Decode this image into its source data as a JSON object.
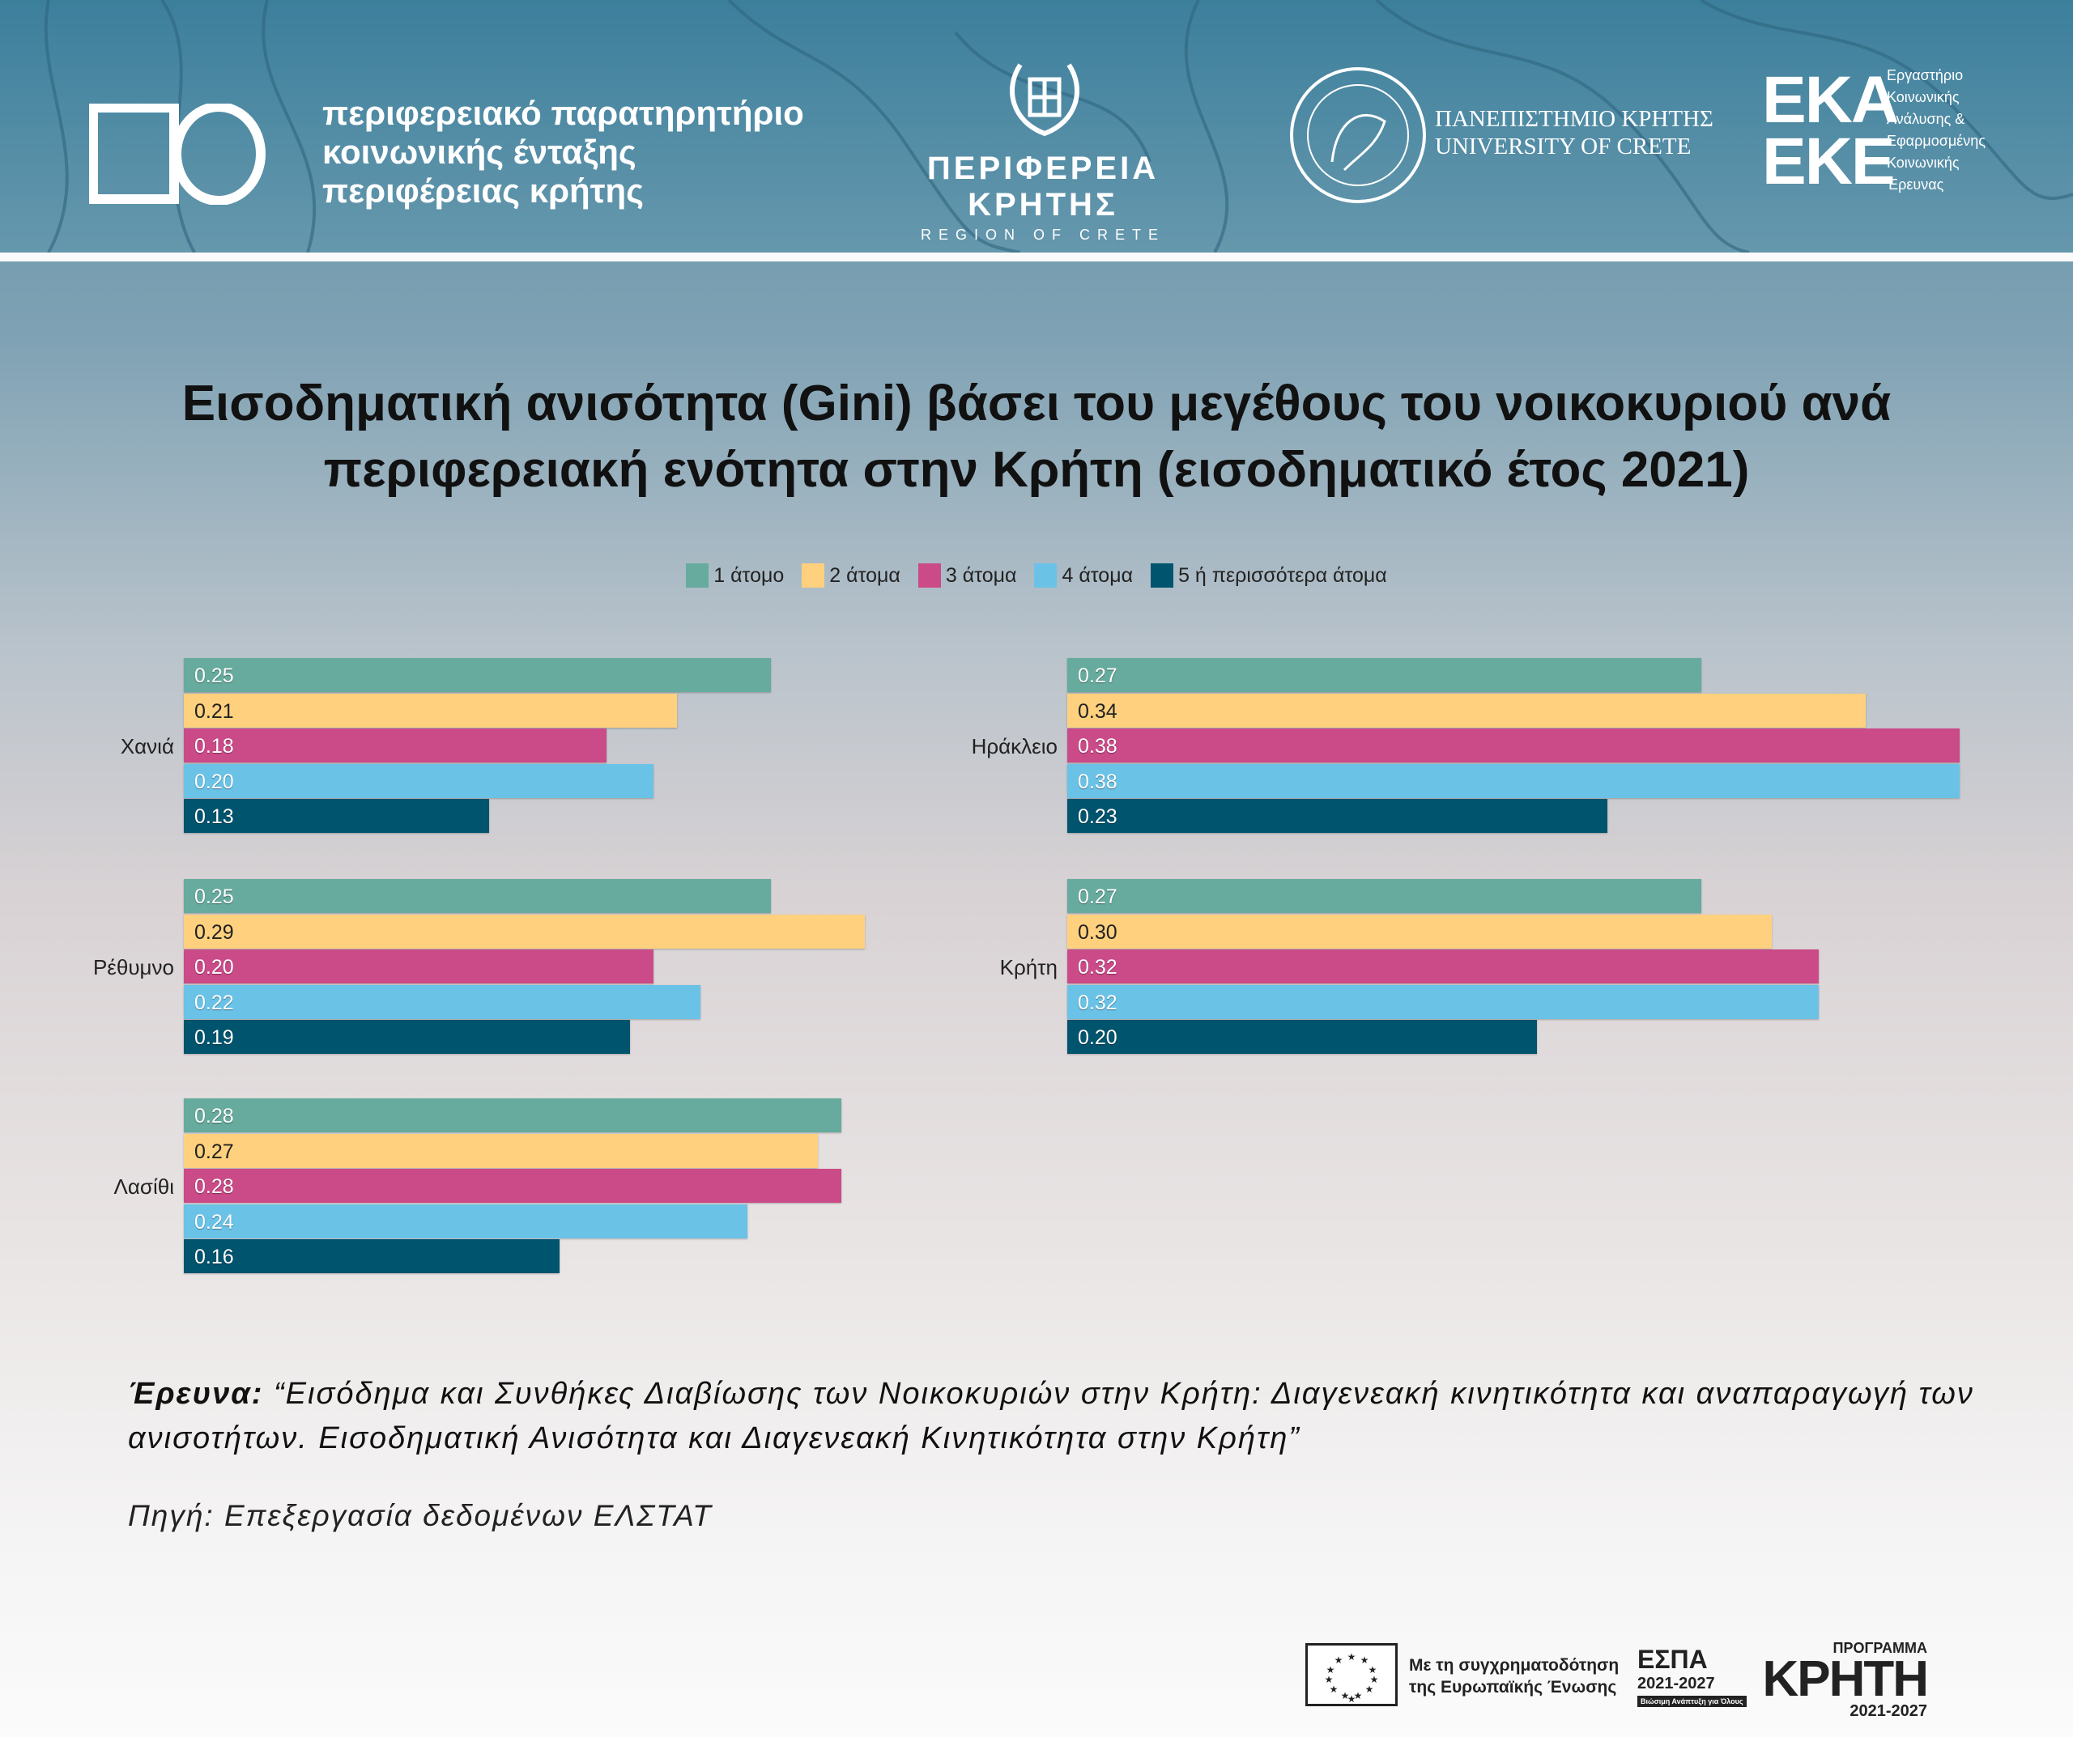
{
  "header": {
    "observatory_lines": [
      "περιφερειακό παρατηρητήριο",
      "κοινωνικής ένταξης",
      "περιφέρειας κρήτης"
    ],
    "region_title": "ΠΕΡΙΦΕΡΕΙΑ ΚΡΗΤΗΣ",
    "region_subtitle": "REGION OF CRETE",
    "university_lines": [
      "ΠΑΝΕΠΙΣΤΗΜΙΟ ΚΡΗΤΗΣ",
      "UNIVERSITY OF CRETE"
    ],
    "eka_logo": [
      "ΕΚΑ",
      "ΕΚΕ"
    ],
    "eka_text": [
      "Εργαστήριο",
      "Κοινωνικής",
      "Ανάλυσης &",
      "Εφαρμοσμένης",
      "Κοινωνικής",
      "Έρευνας"
    ]
  },
  "chart_data": {
    "type": "bar",
    "orientation": "horizontal",
    "title_lines": [
      "Εισοδηματική ανισότητα (Gini) βάσει του μεγέθους του νοικοκυριού ανά",
      "περιφερειακή ενότητα στην Κρήτη (εισοδηματικό έτος 2021)"
    ],
    "legend_placement": "top-center",
    "series": [
      {
        "name": "1 άτομο",
        "color": "#66ab9e"
      },
      {
        "name": "2 άτομα",
        "color": "#ffd17e"
      },
      {
        "name": "3 άτομα",
        "color": "#cb4a88"
      },
      {
        "name": "4 άτομα",
        "color": "#6ac2e7"
      },
      {
        "name": "5 ή περισσότερα άτομα",
        "color": "#00546e"
      }
    ],
    "groups": [
      {
        "name": "Χανιά",
        "values": [
          0.25,
          0.21,
          0.18,
          0.2,
          0.13
        ],
        "labels": [
          "0.25",
          "0.21",
          "0.18",
          "0.20",
          "0.13"
        ]
      },
      {
        "name": "Ρέθυμνο",
        "values": [
          0.25,
          0.29,
          0.2,
          0.22,
          0.19
        ],
        "labels": [
          "0.25",
          "0.29",
          "0.20",
          "0.22",
          "0.19"
        ]
      },
      {
        "name": "Λασίθι",
        "values": [
          0.28,
          0.27,
          0.28,
          0.24,
          0.16
        ],
        "labels": [
          "0.28",
          "0.27",
          "0.28",
          "0.24",
          "0.16"
        ]
      },
      {
        "name": "Ηράκλειο",
        "values": [
          0.27,
          0.34,
          0.38,
          0.38,
          0.23
        ],
        "labels": [
          "0.27",
          "0.34",
          "0.38",
          "0.38",
          "0.23"
        ]
      },
      {
        "name": "Κρήτη",
        "values": [
          0.27,
          0.3,
          0.32,
          0.32,
          0.2
        ],
        "labels": [
          "0.27",
          "0.30",
          "0.32",
          "0.32",
          "0.20"
        ]
      }
    ],
    "xlim": [
      0,
      0.4
    ]
  },
  "footer": {
    "survey_label": "Έρευνα:",
    "survey_text": "“Εισόδημα και Συνθήκες Διαβίωσης των Νοικοκυριών στην Κρήτη: Διαγενεακή κινητικότητα και αναπαραγωγή των ανισοτήτων. Εισοδηματική Ανισότητα και Διαγενεακή  Κινητικότητα στην Κρήτη”",
    "source": "Πηγή: Επεξεργασία δεδομένων ΕΛΣΤΑΤ",
    "eu_lines": [
      "Με τη συγχρηματοδότηση",
      "της Ευρωπαϊκής Ένωσης"
    ],
    "espa": {
      "title": "ΕΣΠΑ",
      "years": "2021-2027",
      "slogan": "Βιώσιμη Ανάπτυξη για Όλους"
    },
    "programme": {
      "top": "ΠΡΟΓΡΑΜΜΑ",
      "name": "ΚΡΗΤΗ",
      "years": "2021-2027"
    }
  }
}
